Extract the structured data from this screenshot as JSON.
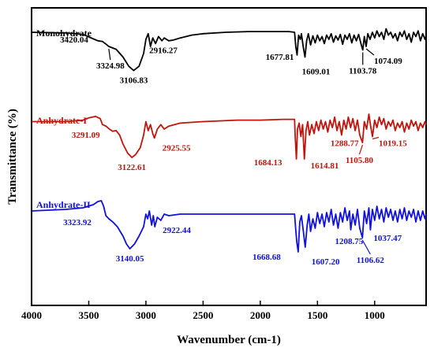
{
  "chart_data": {
    "type": "line",
    "xlabel": "Wavenumber (cm-1)",
    "ylabel": "Transmittance (%)",
    "xlim": [
      4000,
      550
    ],
    "x_reversed": true,
    "x_ticks": [
      4000,
      3500,
      3000,
      2500,
      2000,
      1500,
      1000
    ],
    "y_ticks_shown": false,
    "series": [
      {
        "name": "Monohydrate",
        "color": "#000000",
        "points": [
          [
            4000,
            0.9
          ],
          [
            3700,
            0.89
          ],
          [
            3550,
            0.87
          ],
          [
            3450,
            0.8
          ],
          [
            3420.04,
            0.78
          ],
          [
            3380,
            0.77
          ],
          [
            3340,
            0.72
          ],
          [
            3324.98,
            0.7
          ],
          [
            3260,
            0.66
          ],
          [
            3200,
            0.55
          ],
          [
            3150,
            0.42
          ],
          [
            3106.83,
            0.36
          ],
          [
            3060,
            0.42
          ],
          [
            3020,
            0.6
          ],
          [
            3000,
            0.8
          ],
          [
            2980,
            0.88
          ],
          [
            2960,
            0.7
          ],
          [
            2940,
            0.82
          ],
          [
            2916.27,
            0.74
          ],
          [
            2890,
            0.84
          ],
          [
            2860,
            0.78
          ],
          [
            2840,
            0.82
          ],
          [
            2800,
            0.78
          ],
          [
            2760,
            0.79
          ],
          [
            2700,
            0.82
          ],
          [
            2600,
            0.86
          ],
          [
            2500,
            0.88
          ],
          [
            2300,
            0.9
          ],
          [
            2100,
            0.91
          ],
          [
            1900,
            0.91
          ],
          [
            1750,
            0.91
          ],
          [
            1700,
            0.9
          ],
          [
            1690,
            0.7
          ],
          [
            1677.81,
            0.58
          ],
          [
            1665,
            0.86
          ],
          [
            1650,
            0.8
          ],
          [
            1640,
            0.88
          ],
          [
            1625,
            0.7
          ],
          [
            1609.01,
            0.55
          ],
          [
            1595,
            0.78
          ],
          [
            1580,
            0.88
          ],
          [
            1560,
            0.72
          ],
          [
            1540,
            0.85
          ],
          [
            1520,
            0.75
          ],
          [
            1500,
            0.86
          ],
          [
            1480,
            0.78
          ],
          [
            1460,
            0.84
          ],
          [
            1440,
            0.74
          ],
          [
            1420,
            0.86
          ],
          [
            1400,
            0.8
          ],
          [
            1380,
            0.88
          ],
          [
            1360,
            0.76
          ],
          [
            1340,
            0.85
          ],
          [
            1320,
            0.79
          ],
          [
            1300,
            0.87
          ],
          [
            1280,
            0.73
          ],
          [
            1260,
            0.86
          ],
          [
            1240,
            0.8
          ],
          [
            1220,
            0.88
          ],
          [
            1200,
            0.75
          ],
          [
            1180,
            0.86
          ],
          [
            1160,
            0.78
          ],
          [
            1140,
            0.87
          ],
          [
            1120,
            0.74
          ],
          [
            1103.78,
            0.65
          ],
          [
            1090,
            0.84
          ],
          [
            1074.09,
            0.7
          ],
          [
            1060,
            0.88
          ],
          [
            1040,
            0.8
          ],
          [
            1020,
            0.9
          ],
          [
            1000,
            0.82
          ],
          [
            980,
            0.92
          ],
          [
            960,
            0.84
          ],
          [
            940,
            0.9
          ],
          [
            920,
            0.8
          ],
          [
            900,
            0.95
          ],
          [
            880,
            0.86
          ],
          [
            860,
            0.9
          ],
          [
            840,
            0.82
          ],
          [
            820,
            0.88
          ],
          [
            800,
            0.78
          ],
          [
            780,
            0.9
          ],
          [
            760,
            0.84
          ],
          [
            740,
            0.92
          ],
          [
            720,
            0.8
          ],
          [
            700,
            0.88
          ],
          [
            680,
            0.76
          ],
          [
            660,
            0.9
          ],
          [
            640,
            0.84
          ],
          [
            620,
            0.92
          ],
          [
            600,
            0.78
          ],
          [
            580,
            0.88
          ],
          [
            560,
            0.8
          ],
          [
            550,
            0.86
          ]
        ],
        "peak_labels": [
          "3420.04",
          "3324.98",
          "3106.83",
          "2916.27",
          "1677.81",
          "1609.01",
          "1103.78",
          "1074.09"
        ]
      },
      {
        "name": "Anhydrate-I",
        "color": "#c0140c",
        "points": [
          [
            4000,
            0.9
          ],
          [
            3700,
            0.9
          ],
          [
            3550,
            0.92
          ],
          [
            3500,
            0.95
          ],
          [
            3440,
            0.97
          ],
          [
            3400,
            0.94
          ],
          [
            3380,
            0.86
          ],
          [
            3350,
            0.84
          ],
          [
            3320,
            0.8
          ],
          [
            3291.09,
            0.77
          ],
          [
            3260,
            0.78
          ],
          [
            3230,
            0.72
          ],
          [
            3200,
            0.6
          ],
          [
            3160,
            0.48
          ],
          [
            3122.61,
            0.42
          ],
          [
            3090,
            0.46
          ],
          [
            3050,
            0.55
          ],
          [
            3020,
            0.72
          ],
          [
            3000,
            0.9
          ],
          [
            2980,
            0.78
          ],
          [
            2960,
            0.86
          ],
          [
            2940,
            0.74
          ],
          [
            2925.55,
            0.68
          ],
          [
            2900,
            0.8
          ],
          [
            2870,
            0.86
          ],
          [
            2840,
            0.8
          ],
          [
            2800,
            0.84
          ],
          [
            2700,
            0.88
          ],
          [
            2500,
            0.9
          ],
          [
            2200,
            0.92
          ],
          [
            2000,
            0.92
          ],
          [
            1800,
            0.93
          ],
          [
            1700,
            0.93
          ],
          [
            1695,
            0.7
          ],
          [
            1684.13,
            0.4
          ],
          [
            1675,
            0.8
          ],
          [
            1660,
            0.88
          ],
          [
            1645,
            0.7
          ],
          [
            1630,
            0.86
          ],
          [
            1614.81,
            0.4
          ],
          [
            1600,
            0.78
          ],
          [
            1585,
            0.9
          ],
          [
            1570,
            0.72
          ],
          [
            1550,
            0.86
          ],
          [
            1530,
            0.74
          ],
          [
            1510,
            0.9
          ],
          [
            1490,
            0.78
          ],
          [
            1470,
            0.92
          ],
          [
            1450,
            0.8
          ],
          [
            1430,
            0.9
          ],
          [
            1410,
            0.76
          ],
          [
            1390,
            0.92
          ],
          [
            1370,
            0.82
          ],
          [
            1350,
            0.96
          ],
          [
            1330,
            0.78
          ],
          [
            1310,
            0.9
          ],
          [
            1288.77,
            0.72
          ],
          [
            1270,
            0.92
          ],
          [
            1250,
            0.8
          ],
          [
            1230,
            0.96
          ],
          [
            1210,
            0.82
          ],
          [
            1190,
            0.94
          ],
          [
            1170,
            0.78
          ],
          [
            1150,
            0.92
          ],
          [
            1130,
            0.72
          ],
          [
            1105.8,
            0.62
          ],
          [
            1090,
            0.9
          ],
          [
            1070,
            0.8
          ],
          [
            1050,
            1.0
          ],
          [
            1035,
            0.84
          ],
          [
            1019.15,
            0.7
          ],
          [
            1000,
            0.92
          ],
          [
            980,
            0.82
          ],
          [
            960,
            0.96
          ],
          [
            940,
            0.86
          ],
          [
            920,
            0.94
          ],
          [
            900,
            0.8
          ],
          [
            880,
            0.9
          ],
          [
            860,
            0.84
          ],
          [
            840,
            0.92
          ],
          [
            820,
            0.78
          ],
          [
            800,
            0.88
          ],
          [
            780,
            0.82
          ],
          [
            760,
            0.9
          ],
          [
            740,
            0.76
          ],
          [
            720,
            0.88
          ],
          [
            700,
            0.8
          ],
          [
            680,
            0.92
          ],
          [
            660,
            0.84
          ],
          [
            640,
            0.9
          ],
          [
            620,
            0.78
          ],
          [
            600,
            0.88
          ],
          [
            580,
            0.82
          ],
          [
            560,
            0.9
          ],
          [
            550,
            0.86
          ]
        ],
        "peak_labels": [
          "3291.09",
          "3122.61",
          "2925.55",
          "1684.13",
          "1614.81",
          "1288.77",
          "1105.80",
          "1019.15"
        ]
      },
      {
        "name": "Anhydrate-II",
        "color": "#1010e0",
        "points": [
          [
            4000,
            0.84
          ],
          [
            3700,
            0.86
          ],
          [
            3550,
            0.88
          ],
          [
            3460,
            0.92
          ],
          [
            3420,
            0.96
          ],
          [
            3390,
            0.97
          ],
          [
            3370,
            0.9
          ],
          [
            3350,
            0.78
          ],
          [
            3323.92,
            0.74
          ],
          [
            3290,
            0.7
          ],
          [
            3250,
            0.64
          ],
          [
            3200,
            0.52
          ],
          [
            3170,
            0.42
          ],
          [
            3140.05,
            0.36
          ],
          [
            3100,
            0.42
          ],
          [
            3060,
            0.52
          ],
          [
            3020,
            0.64
          ],
          [
            3000,
            0.8
          ],
          [
            2985,
            0.74
          ],
          [
            2970,
            0.84
          ],
          [
            2950,
            0.66
          ],
          [
            2935,
            0.78
          ],
          [
            2922.44,
            0.64
          ],
          [
            2900,
            0.76
          ],
          [
            2870,
            0.72
          ],
          [
            2840,
            0.8
          ],
          [
            2800,
            0.78
          ],
          [
            2700,
            0.8
          ],
          [
            2500,
            0.8
          ],
          [
            2200,
            0.8
          ],
          [
            2000,
            0.8
          ],
          [
            1800,
            0.8
          ],
          [
            1700,
            0.8
          ],
          [
            1690,
            0.6
          ],
          [
            1680,
            0.44
          ],
          [
            1668.68,
            0.32
          ],
          [
            1655,
            0.7
          ],
          [
            1640,
            0.78
          ],
          [
            1625,
            0.6
          ],
          [
            1607.2,
            0.38
          ],
          [
            1590,
            0.66
          ],
          [
            1575,
            0.8
          ],
          [
            1560,
            0.58
          ],
          [
            1540,
            0.74
          ],
          [
            1520,
            0.62
          ],
          [
            1500,
            0.82
          ],
          [
            1480,
            0.68
          ],
          [
            1460,
            0.8
          ],
          [
            1440,
            0.64
          ],
          [
            1420,
            0.82
          ],
          [
            1400,
            0.7
          ],
          [
            1380,
            0.86
          ],
          [
            1360,
            0.66
          ],
          [
            1340,
            0.8
          ],
          [
            1320,
            0.62
          ],
          [
            1300,
            0.82
          ],
          [
            1280,
            0.7
          ],
          [
            1260,
            0.88
          ],
          [
            1240,
            0.72
          ],
          [
            1220,
            0.84
          ],
          [
            1208.75,
            0.6
          ],
          [
            1190,
            0.8
          ],
          [
            1170,
            0.66
          ],
          [
            1150,
            0.86
          ],
          [
            1130,
            0.62
          ],
          [
            1106.62,
            0.5
          ],
          [
            1090,
            0.84
          ],
          [
            1070,
            0.68
          ],
          [
            1050,
            0.88
          ],
          [
            1037.47,
            0.6
          ],
          [
            1020,
            0.86
          ],
          [
            1000,
            0.72
          ],
          [
            980,
            0.9
          ],
          [
            960,
            0.74
          ],
          [
            940,
            0.86
          ],
          [
            920,
            0.7
          ],
          [
            900,
            0.88
          ],
          [
            880,
            0.76
          ],
          [
            860,
            0.86
          ],
          [
            840,
            0.72
          ],
          [
            820,
            0.84
          ],
          [
            800,
            0.7
          ],
          [
            780,
            0.86
          ],
          [
            760,
            0.74
          ],
          [
            740,
            0.88
          ],
          [
            720,
            0.72
          ],
          [
            700,
            0.84
          ],
          [
            680,
            0.76
          ],
          [
            660,
            0.86
          ],
          [
            640,
            0.7
          ],
          [
            620,
            0.84
          ],
          [
            600,
            0.72
          ],
          [
            580,
            0.84
          ],
          [
            560,
            0.74
          ],
          [
            550,
            0.8
          ]
        ],
        "peak_labels": [
          "3323.92",
          "3140.05",
          "2922.44",
          "1668.68",
          "1607.20",
          "1208.75",
          "1037.47",
          "1106.62"
        ]
      }
    ]
  }
}
